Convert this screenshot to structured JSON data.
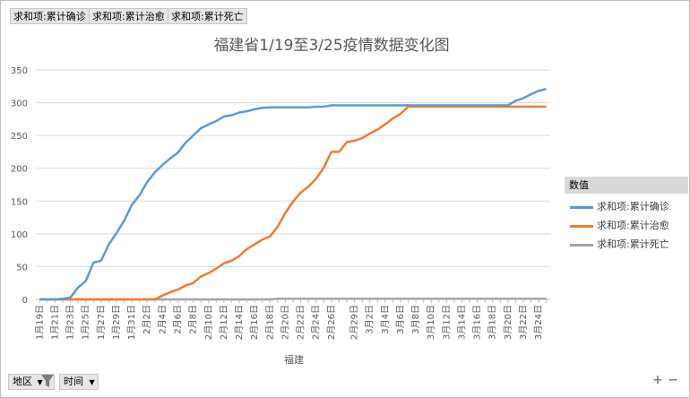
{
  "filters": [
    {
      "label": "求和项:累计确诊"
    },
    {
      "label": "求和项:累计治愈"
    },
    {
      "label": "求和项:累计死亡"
    }
  ],
  "chart_data": {
    "type": "line",
    "title": "福建省1/19至3/25疫情数据变化图",
    "xlabel": "福建",
    "ylabel": "",
    "ylim": [
      0,
      350
    ],
    "yticks": [
      0,
      50,
      100,
      150,
      200,
      250,
      300,
      350
    ],
    "grid": true,
    "legend_position": "right",
    "legend_title": "数值",
    "x": [
      "1月19日",
      "1月20日",
      "1月21日",
      "1月22日",
      "1月23日",
      "1月24日",
      "1月25日",
      "1月26日",
      "1月27日",
      "1月28日",
      "1月29日",
      "1月30日",
      "1月31日",
      "2月1日",
      "2月2日",
      "2月3日",
      "2月4日",
      "2月5日",
      "2月6日",
      "2月7日",
      "2月8日",
      "2月9日",
      "2月10日",
      "2月11日",
      "2月12日",
      "2月13日",
      "2月14日",
      "2月15日",
      "2月16日",
      "2月17日",
      "2月18日",
      "2月19日",
      "2月20日",
      "2月21日",
      "2月22日",
      "2月23日",
      "2月24日",
      "2月25日",
      "2月26日",
      "2月27日",
      "2月28日",
      "2月29日",
      "3月1日",
      "3月2日",
      "3月3日",
      "3月4日",
      "3月5日",
      "3月6日",
      "3月7日",
      "3月8日",
      "3月9日",
      "3月10日",
      "3月11日",
      "3月12日",
      "3月13日",
      "3月14日",
      "3月15日",
      "3月16日",
      "3月17日",
      "3月18日",
      "3月19日",
      "3月20日",
      "3月21日",
      "3月22日",
      "3月23日",
      "3月24日",
      "3月25日"
    ],
    "x_tick_labels": [
      "1月19日",
      "1月21日",
      "1月23日",
      "1月25日",
      "1月27日",
      "1月29日",
      "1月31日",
      "2月2日",
      "2月4日",
      "2月6日",
      "2月8日",
      "2月10日",
      "2月12日",
      "2月14日",
      "2月16日",
      "2月18日",
      "2月20日",
      "2月22日",
      "2月24日",
      "2月26日",
      "2月29日",
      "3月2日",
      "3月4日",
      "3月6日",
      "3月8日",
      "3月10日",
      "3月12日",
      "3月14日",
      "3月16日",
      "3月18日",
      "3月20日",
      "3月22日",
      "3月24日"
    ],
    "series": [
      {
        "name": "求和项:累计确诊",
        "color": "#5b9bd5",
        "values": [
          0,
          0,
          0,
          1,
          3,
          18,
          28,
          56,
          59,
          84,
          101,
          120,
          144,
          159,
          179,
          194,
          205,
          215,
          224,
          239,
          250,
          261,
          267,
          272,
          279,
          281,
          285,
          287,
          290,
          292,
          293,
          293,
          293,
          293,
          293,
          293,
          294,
          294,
          296,
          296,
          296,
          296,
          296,
          296,
          296,
          296,
          296,
          296,
          296,
          296,
          296,
          296,
          296,
          296,
          296,
          296,
          296,
          296,
          296,
          296,
          296,
          296,
          303,
          307,
          313,
          318,
          321
        ]
      },
      {
        "name": "求和项:累计治愈",
        "color": "#ed7d31",
        "values": [
          0,
          0,
          0,
          0,
          0,
          0,
          0,
          0,
          0,
          0,
          0,
          0,
          0,
          0,
          0,
          0,
          6,
          11,
          15,
          21,
          25,
          35,
          40,
          47,
          55,
          59,
          66,
          77,
          84,
          91,
          96,
          111,
          132,
          149,
          163,
          172,
          184,
          201,
          225,
          225,
          240,
          242,
          246,
          253,
          259,
          267,
          276,
          283,
          294,
          294,
          294,
          294,
          294,
          294,
          294,
          294,
          294,
          294,
          294,
          294,
          294,
          294,
          294,
          294,
          294,
          294,
          294
        ]
      },
      {
        "name": "求和项:累计死亡",
        "color": "#a5a5a5",
        "values": [
          0,
          0,
          0,
          0,
          0,
          0,
          0,
          0,
          0,
          0,
          0,
          0,
          0,
          0,
          0,
          0,
          0,
          0,
          0,
          0,
          0,
          0,
          0,
          0,
          0,
          0,
          0,
          0,
          0,
          0,
          0,
          1,
          1,
          1,
          1,
          1,
          1,
          1,
          1,
          1,
          1,
          1,
          1,
          1,
          1,
          1,
          1,
          1,
          1,
          1,
          1,
          1,
          1,
          1,
          1,
          1,
          1,
          1,
          1,
          1,
          1,
          1,
          1,
          1,
          1,
          1,
          1
        ]
      }
    ]
  },
  "bottom": {
    "region_label": "地区",
    "time_label": "时间"
  },
  "controls": {
    "plus": "+",
    "minus": "−"
  }
}
